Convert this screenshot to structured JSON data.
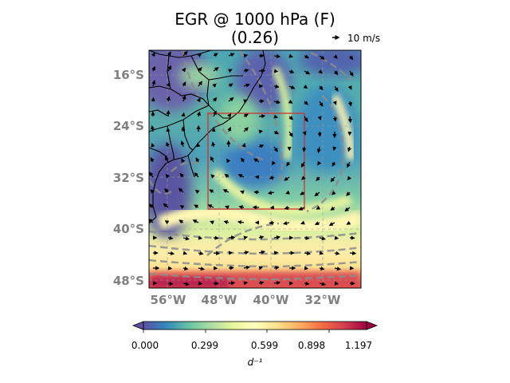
{
  "figure": {
    "title_line1": "EGR @ 1000 hPa (F)",
    "title_line2": "(0.26)",
    "quiver_key_label": "10 m/s"
  },
  "chart_data": {
    "type": "heatmap",
    "variable": "EGR",
    "level": "1000 hPa",
    "lat_ticks": [
      "16°S",
      "24°S",
      "32°S",
      "40°S",
      "48°S"
    ],
    "lon_ticks": [
      "56°W",
      "48°W",
      "40°W",
      "32°W"
    ],
    "extent": {
      "lon": [
        -59,
        -26
      ],
      "lat": [
        -13,
        -50
      ]
    },
    "highlight_box": {
      "lon": [
        -50,
        -35
      ],
      "lat": [
        -23,
        -38
      ],
      "color": "#cc3333"
    },
    "colorbar": {
      "ticks": [
        "0.000",
        "0.299",
        "0.599",
        "0.898",
        "1.197"
      ],
      "range": [
        0,
        1.3
      ],
      "label": "d⁻¹",
      "colormap": "Spectral_r",
      "extend": "both"
    },
    "overlays": [
      "wind vectors",
      "dashed contours",
      "coastlines",
      "country borders",
      "gridlines"
    ]
  }
}
